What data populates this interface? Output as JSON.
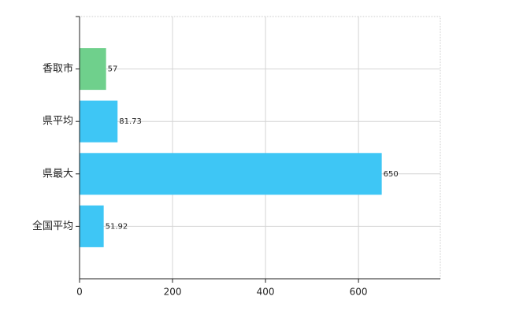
{
  "chart_data": {
    "type": "bar",
    "orientation": "horizontal",
    "categories": [
      "香取市",
      "県平均",
      "県最大",
      "全国平均"
    ],
    "values": [
      57,
      81.73,
      650,
      51.92
    ],
    "colors": [
      "#6fd08c",
      "#3ec6f5",
      "#3ec6f5",
      "#3ec6f5"
    ],
    "xlim": [
      0,
      776
    ],
    "xticks": [
      0,
      200,
      400,
      600
    ],
    "grid": true
  }
}
